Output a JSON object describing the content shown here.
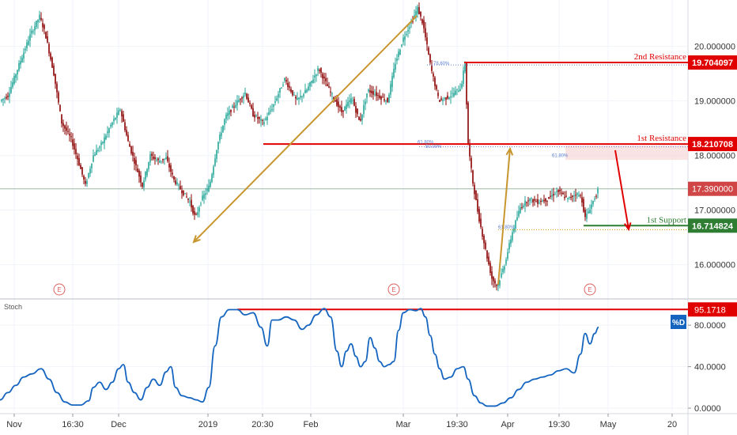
{
  "chart_data": {
    "type": "candlestick",
    "colors": {
      "up": "#26a69a",
      "down": "#8b0000",
      "resistance": "#e00000",
      "support": "#2e7d32",
      "arrow_gold": "#c8962e",
      "arrow_red": "#e00000",
      "stoch": "#1565c0",
      "price_badge": "#d04545",
      "current_line": "#9fb8a8"
    },
    "price_axis": {
      "ylim": [
        15.4,
        20.85
      ],
      "ticks": [
        "20.000000",
        "19.000000",
        "18.000000",
        "17.000000",
        "16.000000"
      ]
    },
    "time_axis": {
      "ticks": [
        "Nov",
        "16:30",
        "Dec",
        "2019",
        "20:30",
        "Feb",
        "Mar",
        "19:30",
        "Apr",
        "19:30",
        "May",
        "20"
      ]
    },
    "price_path": [
      [
        0,
        19.0
      ],
      [
        10,
        19.1
      ],
      [
        25,
        19.7
      ],
      [
        38,
        20.2
      ],
      [
        50,
        20.55
      ],
      [
        57,
        20.25
      ],
      [
        68,
        19.5
      ],
      [
        78,
        18.6
      ],
      [
        90,
        18.3
      ],
      [
        100,
        17.85
      ],
      [
        108,
        17.45
      ],
      [
        118,
        18.0
      ],
      [
        128,
        18.2
      ],
      [
        140,
        18.55
      ],
      [
        152,
        18.85
      ],
      [
        162,
        18.25
      ],
      [
        172,
        17.8
      ],
      [
        180,
        17.45
      ],
      [
        190,
        18.0
      ],
      [
        200,
        17.9
      ],
      [
        210,
        17.95
      ],
      [
        220,
        17.55
      ],
      [
        230,
        17.35
      ],
      [
        240,
        17.15
      ],
      [
        247,
        16.85
      ],
      [
        255,
        17.2
      ],
      [
        265,
        17.45
      ],
      [
        275,
        18.2
      ],
      [
        285,
        18.7
      ],
      [
        298,
        18.95
      ],
      [
        310,
        19.15
      ],
      [
        320,
        18.75
      ],
      [
        333,
        18.6
      ],
      [
        345,
        18.9
      ],
      [
        360,
        19.4
      ],
      [
        375,
        19.0
      ],
      [
        388,
        19.2
      ],
      [
        403,
        19.6
      ],
      [
        418,
        19.15
      ],
      [
        432,
        18.8
      ],
      [
        445,
        19.05
      ],
      [
        455,
        18.6
      ],
      [
        465,
        19.2
      ],
      [
        478,
        19.1
      ],
      [
        490,
        19.0
      ],
      [
        500,
        19.7
      ],
      [
        510,
        20.15
      ],
      [
        522,
        20.5
      ],
      [
        528,
        20.7
      ],
      [
        535,
        20.4
      ],
      [
        545,
        19.6
      ],
      [
        555,
        19.0
      ],
      [
        570,
        19.1
      ],
      [
        583,
        19.25
      ],
      [
        588,
        19.7
      ],
      [
        592,
        18.2
      ],
      [
        598,
        17.5
      ],
      [
        605,
        16.9
      ],
      [
        615,
        16.2
      ],
      [
        622,
        15.75
      ],
      [
        629,
        15.6
      ],
      [
        638,
        16.0
      ],
      [
        648,
        16.6
      ],
      [
        658,
        17.05
      ],
      [
        668,
        17.2
      ],
      [
        680,
        17.15
      ],
      [
        692,
        17.2
      ],
      [
        705,
        17.35
      ],
      [
        718,
        17.2
      ],
      [
        728,
        17.3
      ],
      [
        735,
        17.25
      ],
      [
        740,
        16.85
      ],
      [
        748,
        17.1
      ],
      [
        757,
        17.39
      ]
    ],
    "levels": [
      {
        "name": "2nd Resistance",
        "value": "19.704097",
        "y": 19.704097,
        "x_start": 587,
        "x_end": 870,
        "color_key": "resistance"
      },
      {
        "name": "1st Resistance",
        "value": "18.210708",
        "y": 18.210708,
        "x_start": 333,
        "x_end": 870,
        "color_key": "resistance"
      },
      {
        "name": "1st Support",
        "value": "16.714824",
        "y": 16.714824,
        "x_start": 738,
        "x_end": 870,
        "color_key": "support"
      }
    ],
    "current_price": {
      "value": "17.390000",
      "y": 17.39
    },
    "fib_labels": [
      {
        "text": "78.60%",
        "x": 548,
        "y": 19.66
      },
      {
        "text": "61.80%",
        "x": 528,
        "y": 18.22
      },
      {
        "text": "50.00%",
        "x": 538,
        "y": 18.14
      },
      {
        "text": "61.80%",
        "x": 698,
        "y": 17.97
      },
      {
        "text": "61.80%",
        "x": 630,
        "y": 16.66
      }
    ],
    "events": [
      {
        "label": "E",
        "x": 75
      },
      {
        "label": "E",
        "x": 498
      },
      {
        "label": "E",
        "x": 746
      }
    ],
    "stoch": {
      "title": "Stoch",
      "series_label": "%D",
      "level_value": "95.1718",
      "level_y": 95.1718,
      "ylim": [
        -3,
        103
      ],
      "ticks": [
        "80.0000",
        "40.0000",
        "0.0000"
      ],
      "path": [
        [
          0,
          8
        ],
        [
          10,
          15
        ],
        [
          20,
          22
        ],
        [
          30,
          30
        ],
        [
          40,
          33
        ],
        [
          52,
          38
        ],
        [
          62,
          28
        ],
        [
          72,
          15
        ],
        [
          82,
          6
        ],
        [
          92,
          3
        ],
        [
          102,
          3
        ],
        [
          112,
          7
        ],
        [
          118,
          20
        ],
        [
          126,
          25
        ],
        [
          134,
          18
        ],
        [
          142,
          25
        ],
        [
          150,
          38
        ],
        [
          156,
          42
        ],
        [
          162,
          25
        ],
        [
          170,
          15
        ],
        [
          178,
          8
        ],
        [
          186,
          20
        ],
        [
          194,
          28
        ],
        [
          202,
          22
        ],
        [
          210,
          35
        ],
        [
          216,
          40
        ],
        [
          222,
          20
        ],
        [
          230,
          12
        ],
        [
          240,
          10
        ],
        [
          248,
          8
        ],
        [
          256,
          6
        ],
        [
          264,
          20
        ],
        [
          272,
          60
        ],
        [
          280,
          88
        ],
        [
          290,
          95
        ],
        [
          300,
          95
        ],
        [
          310,
          90
        ],
        [
          320,
          92
        ],
        [
          330,
          78
        ],
        [
          338,
          60
        ],
        [
          344,
          85
        ],
        [
          352,
          85
        ],
        [
          362,
          88
        ],
        [
          372,
          85
        ],
        [
          382,
          76
        ],
        [
          390,
          80
        ],
        [
          400,
          90
        ],
        [
          410,
          96
        ],
        [
          418,
          88
        ],
        [
          426,
          55
        ],
        [
          432,
          40
        ],
        [
          438,
          55
        ],
        [
          444,
          62
        ],
        [
          450,
          50
        ],
        [
          456,
          40
        ],
        [
          462,
          45
        ],
        [
          468,
          68
        ],
        [
          474,
          58
        ],
        [
          480,
          45
        ],
        [
          486,
          40
        ],
        [
          492,
          42
        ],
        [
          498,
          45
        ],
        [
          504,
          75
        ],
        [
          510,
          92
        ],
        [
          518,
          95
        ],
        [
          526,
          94
        ],
        [
          532,
          96
        ],
        [
          538,
          88
        ],
        [
          544,
          70
        ],
        [
          550,
          52
        ],
        [
          556,
          38
        ],
        [
          562,
          28
        ],
        [
          570,
          30
        ],
        [
          578,
          38
        ],
        [
          586,
          40
        ],
        [
          592,
          28
        ],
        [
          600,
          12
        ],
        [
          608,
          5
        ],
        [
          616,
          2
        ],
        [
          626,
          2
        ],
        [
          636,
          5
        ],
        [
          646,
          10
        ],
        [
          656,
          18
        ],
        [
          666,
          25
        ],
        [
          676,
          28
        ],
        [
          686,
          30
        ],
        [
          696,
          32
        ],
        [
          706,
          36
        ],
        [
          716,
          38
        ],
        [
          726,
          34
        ],
        [
          734,
          52
        ],
        [
          740,
          72
        ],
        [
          746,
          62
        ],
        [
          752,
          72
        ],
        [
          757,
          78
        ]
      ]
    }
  }
}
